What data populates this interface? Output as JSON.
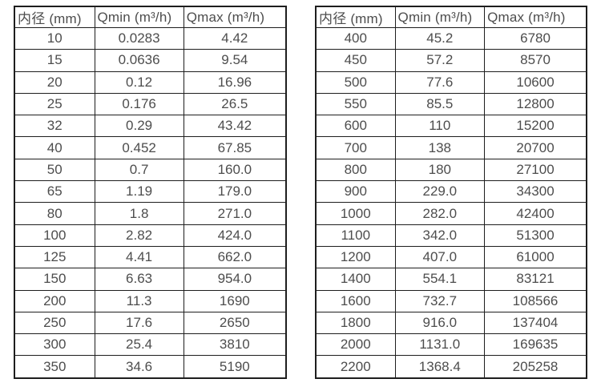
{
  "style": {
    "background_color": "#ffffff",
    "border_color": "#1e1e1e",
    "text_color": "#4d4d4d"
  },
  "tables": [
    {
      "name": "flow-spec-table-small-diameters",
      "headers": [
        "内径 (mm)",
        "Qmin (m³/h)",
        "Qmax (m³/h)"
      ],
      "rows": [
        [
          "10",
          "0.0283",
          "4.42"
        ],
        [
          "15",
          "0.0636",
          "9.54"
        ],
        [
          "20",
          "0.12",
          "16.96"
        ],
        [
          "25",
          "0.176",
          "26.5"
        ],
        [
          "32",
          "0.29",
          "43.42"
        ],
        [
          "40",
          "0.452",
          "67.85"
        ],
        [
          "50",
          "0.7",
          "160.0"
        ],
        [
          "65",
          "1.19",
          "179.0"
        ],
        [
          "80",
          "1.8",
          "271.0"
        ],
        [
          "100",
          "2.82",
          "424.0"
        ],
        [
          "125",
          "4.41",
          "662.0"
        ],
        [
          "150",
          "6.63",
          "954.0"
        ],
        [
          "200",
          "11.3",
          "1690"
        ],
        [
          "250",
          "17.6",
          "2650"
        ],
        [
          "300",
          "25.4",
          "3810"
        ],
        [
          "350",
          "34.6",
          "5190"
        ]
      ]
    },
    {
      "name": "flow-spec-table-large-diameters",
      "headers": [
        "内径 (mm)",
        "Qmin (m³/h)",
        "Qmax (m³/h)"
      ],
      "rows": [
        [
          "400",
          "45.2",
          "6780"
        ],
        [
          "450",
          "57.2",
          "8570"
        ],
        [
          "500",
          "77.6",
          "10600"
        ],
        [
          "550",
          "85.5",
          "12800"
        ],
        [
          "600",
          "110",
          "15200"
        ],
        [
          "700",
          "138",
          "20700"
        ],
        [
          "800",
          "180",
          "27100"
        ],
        [
          "900",
          "229.0",
          "34300"
        ],
        [
          "1000",
          "282.0",
          "42400"
        ],
        [
          "1100",
          "342.0",
          "51300"
        ],
        [
          "1200",
          "407.0",
          "61000"
        ],
        [
          "1400",
          "554.1",
          "83121"
        ],
        [
          "1600",
          "732.7",
          "108566"
        ],
        [
          "1800",
          "916.0",
          "137404"
        ],
        [
          "2000",
          "1131.0",
          "169635"
        ],
        [
          "2200",
          "1368.4",
          "205258"
        ]
      ]
    }
  ]
}
